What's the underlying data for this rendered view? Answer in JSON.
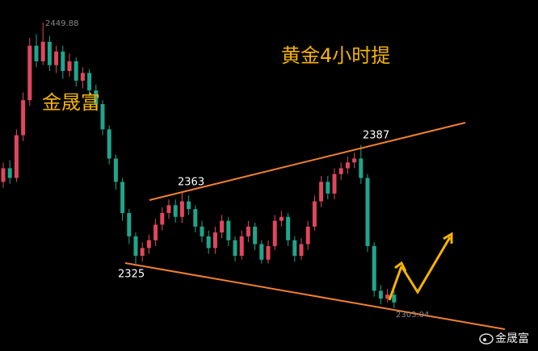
{
  "chart_data": {
    "type": "candlestick",
    "title": "黄金4小时提",
    "watermark": "金晟富",
    "credit": "金晟富",
    "up_color": "#e0475c",
    "down_color": "#20a58c",
    "open": [
      2368,
      2375,
      2370,
      2392,
      2410,
      2438,
      2430,
      2440,
      2428,
      2435,
      2425,
      2430,
      2420,
      2424,
      2415,
      2408,
      2395,
      2380,
      2368,
      2352,
      2340,
      2330,
      2334,
      2338,
      2346,
      2352,
      2356,
      2350,
      2358,
      2354,
      2345,
      2340,
      2334,
      2342,
      2348,
      2338,
      2330,
      2340,
      2345,
      2336,
      2328,
      2335,
      2348,
      2350,
      2338,
      2330,
      2336,
      2345,
      2358,
      2368,
      2362,
      2372,
      2375,
      2378,
      2380,
      2370,
      2335,
      2312,
      2308,
      2310
    ],
    "high": [
      2378,
      2379,
      2395,
      2414,
      2442,
      2444,
      2449.88,
      2443,
      2438,
      2438,
      2434,
      2432,
      2427,
      2426,
      2418,
      2410,
      2397,
      2382,
      2370,
      2354,
      2342,
      2337,
      2341,
      2349,
      2355,
      2359,
      2359,
      2363,
      2361,
      2356,
      2348,
      2343,
      2345,
      2351,
      2350,
      2340,
      2343,
      2348,
      2347,
      2338,
      2338,
      2351,
      2353,
      2352,
      2340,
      2339,
      2348,
      2361,
      2371,
      2371,
      2375,
      2378,
      2381,
      2383,
      2387,
      2372,
      2337,
      2315,
      2313,
      2312
    ],
    "low": [
      2365,
      2367,
      2368,
      2389,
      2407,
      2427,
      2428,
      2425,
      2424,
      2421,
      2422,
      2417,
      2416,
      2412,
      2405,
      2392,
      2377,
      2364,
      2348,
      2336,
      2325,
      2327,
      2331,
      2335,
      2343,
      2349,
      2347,
      2347,
      2351,
      2342,
      2337,
      2331,
      2331,
      2339,
      2335,
      2327,
      2328,
      2337,
      2333,
      2326,
      2326,
      2333,
      2345,
      2335,
      2327,
      2328,
      2333,
      2343,
      2355,
      2359,
      2359,
      2369,
      2372,
      2375,
      2367,
      2332,
      2309,
      2305,
      2306,
      2303.04
    ],
    "close": [
      2375,
      2370,
      2392,
      2410,
      2438,
      2430,
      2440,
      2428,
      2435,
      2425,
      2430,
      2420,
      2424,
      2415,
      2408,
      2395,
      2380,
      2368,
      2352,
      2340,
      2330,
      2334,
      2338,
      2346,
      2352,
      2356,
      2350,
      2358,
      2354,
      2345,
      2340,
      2334,
      2342,
      2348,
      2338,
      2330,
      2340,
      2345,
      2336,
      2328,
      2335,
      2348,
      2350,
      2338,
      2330,
      2336,
      2345,
      2358,
      2368,
      2362,
      2372,
      2375,
      2378,
      2380,
      2370,
      2335,
      2312,
      2308,
      2310,
      2306
    ]
  }
}
